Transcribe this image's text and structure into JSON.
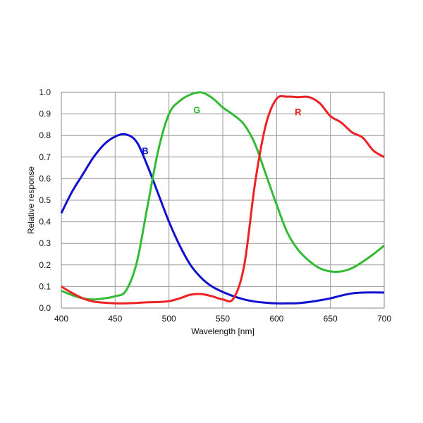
{
  "chart_data": {
    "type": "line",
    "title": "",
    "xlabel": "Wavelength [nm]",
    "ylabel": "Relative response",
    "xlim": [
      400,
      700
    ],
    "ylim": [
      0.0,
      1.0
    ],
    "x_ticks": [
      400,
      450,
      500,
      550,
      600,
      650,
      700
    ],
    "y_ticks": [
      0.0,
      0.1,
      0.2,
      0.3,
      0.4,
      0.5,
      0.6,
      0.7,
      0.8,
      0.9,
      1.0
    ],
    "x_tick_labels": [
      "400",
      "450",
      "500",
      "550",
      "600",
      "650",
      "700"
    ],
    "y_tick_labels": [
      "0.0",
      "0.1",
      "0.2",
      "0.3",
      "0.4",
      "0.5",
      "0.6",
      "0.7",
      "0.8",
      "0.9",
      "1.0"
    ],
    "grid": true,
    "series": [
      {
        "name": "B",
        "color": "#1010d0",
        "label_at": [
          478,
          0.73
        ],
        "points": [
          [
            400,
            0.44
          ],
          [
            410,
            0.54
          ],
          [
            420,
            0.62
          ],
          [
            430,
            0.7
          ],
          [
            440,
            0.76
          ],
          [
            450,
            0.795
          ],
          [
            460,
            0.805
          ],
          [
            470,
            0.77
          ],
          [
            480,
            0.66
          ],
          [
            490,
            0.53
          ],
          [
            500,
            0.4
          ],
          [
            510,
            0.29
          ],
          [
            520,
            0.2
          ],
          [
            530,
            0.14
          ],
          [
            540,
            0.1
          ],
          [
            550,
            0.075
          ],
          [
            560,
            0.055
          ],
          [
            570,
            0.04
          ],
          [
            580,
            0.03
          ],
          [
            590,
            0.025
          ],
          [
            600,
            0.022
          ],
          [
            610,
            0.022
          ],
          [
            620,
            0.023
          ],
          [
            630,
            0.028
          ],
          [
            640,
            0.036
          ],
          [
            650,
            0.045
          ],
          [
            660,
            0.058
          ],
          [
            670,
            0.068
          ],
          [
            680,
            0.072
          ],
          [
            690,
            0.073
          ],
          [
            700,
            0.072
          ]
        ]
      },
      {
        "name": "G",
        "color": "#33bb33",
        "label_at": [
          526,
          0.92
        ],
        "points": [
          [
            400,
            0.08
          ],
          [
            410,
            0.06
          ],
          [
            420,
            0.045
          ],
          [
            430,
            0.04
          ],
          [
            440,
            0.045
          ],
          [
            450,
            0.055
          ],
          [
            460,
            0.08
          ],
          [
            470,
            0.21
          ],
          [
            480,
            0.47
          ],
          [
            490,
            0.73
          ],
          [
            500,
            0.9
          ],
          [
            510,
            0.96
          ],
          [
            520,
            0.99
          ],
          [
            530,
            1.0
          ],
          [
            540,
            0.975
          ],
          [
            550,
            0.93
          ],
          [
            560,
            0.895
          ],
          [
            570,
            0.85
          ],
          [
            580,
            0.76
          ],
          [
            590,
            0.62
          ],
          [
            600,
            0.48
          ],
          [
            610,
            0.35
          ],
          [
            620,
            0.27
          ],
          [
            630,
            0.22
          ],
          [
            640,
            0.185
          ],
          [
            650,
            0.17
          ],
          [
            660,
            0.17
          ],
          [
            670,
            0.185
          ],
          [
            680,
            0.215
          ],
          [
            690,
            0.25
          ],
          [
            700,
            0.29
          ]
        ]
      },
      {
        "name": "R",
        "color": "#ee2222",
        "label_at": [
          620,
          0.91
        ],
        "points": [
          [
            400,
            0.1
          ],
          [
            410,
            0.07
          ],
          [
            420,
            0.045
          ],
          [
            430,
            0.03
          ],
          [
            440,
            0.025
          ],
          [
            450,
            0.022
          ],
          [
            460,
            0.022
          ],
          [
            470,
            0.024
          ],
          [
            480,
            0.027
          ],
          [
            490,
            0.028
          ],
          [
            500,
            0.032
          ],
          [
            510,
            0.045
          ],
          [
            520,
            0.062
          ],
          [
            530,
            0.065
          ],
          [
            540,
            0.055
          ],
          [
            550,
            0.04
          ],
          [
            560,
            0.045
          ],
          [
            570,
            0.2
          ],
          [
            580,
            0.58
          ],
          [
            590,
            0.85
          ],
          [
            600,
            0.97
          ],
          [
            610,
            0.98
          ],
          [
            620,
            0.978
          ],
          [
            630,
            0.978
          ],
          [
            640,
            0.95
          ],
          [
            650,
            0.89
          ],
          [
            660,
            0.86
          ],
          [
            670,
            0.815
          ],
          [
            680,
            0.79
          ],
          [
            690,
            0.73
          ],
          [
            700,
            0.7
          ]
        ]
      }
    ]
  }
}
